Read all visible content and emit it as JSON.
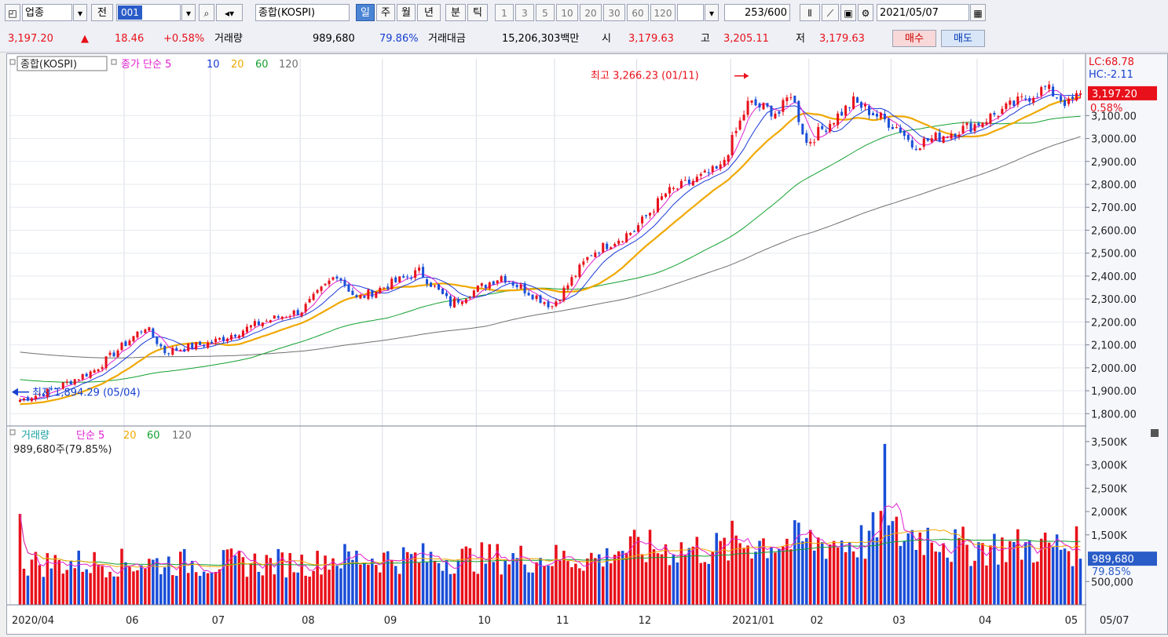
{
  "toolbar": {
    "market_type": "업종",
    "prev_label": "전",
    "code": "001",
    "index_name": "종합(KOSPI)",
    "periods": [
      "일",
      "주",
      "월",
      "년",
      "분",
      "틱"
    ],
    "active_period": "일",
    "intervals": [
      "1",
      "3",
      "5",
      "10",
      "20",
      "30",
      "60",
      "120"
    ],
    "count_value": "253",
    "count_total": "/600",
    "date": "2021/05/07"
  },
  "quote": {
    "price": "3,197.20",
    "change_arrow": "▲",
    "change": "18.46",
    "change_pct": "+0.58%",
    "volume_label": "거래량",
    "volume": "989,680",
    "volume_ratio": "79.86%",
    "amount_label": "거래대금",
    "amount": "15,206,303백만",
    "open_label": "시",
    "open": "3,179.63",
    "high_label": "고",
    "high": "3,205.11",
    "low_label": "저",
    "low": "3,179.63",
    "buy_label": "매수",
    "sell_label": "매도"
  },
  "colors": {
    "up": "#e8101a",
    "down": "#1a4ed8",
    "ma5": "#e020d0",
    "ma10": "#1a3ad8",
    "ma20": "#f0a800",
    "ma60": "#14a030",
    "ma120": "#707070"
  },
  "chart_data": {
    "type": "line",
    "price_legend": {
      "name": "종합(KOSPI)",
      "prefix": "종가 단순",
      "periods": [
        "5",
        "10",
        "20",
        "60",
        "120"
      ]
    },
    "volume_legend": {
      "name": "거래량",
      "prefix": "단순",
      "periods": [
        "5",
        "20",
        "60",
        "120"
      ],
      "current": "989,680주(79.85%)"
    },
    "x_ticks": [
      "2020/04",
      "06",
      "07",
      "08",
      "09",
      "10",
      "11",
      "12",
      "2021/01",
      "02",
      "03",
      "04",
      "05",
      "05/07"
    ],
    "price_axis": [
      "3,100.00",
      "3,000.00",
      "2,900.00",
      "2,800.00",
      "2,700.00",
      "2,600.00",
      "2,500.00",
      "2,400.00",
      "2,300.00",
      "2,200.00",
      "2,100.00",
      "2,000.00",
      "1,900.00",
      "1,800.00"
    ],
    "price_ylim": [
      1760,
      3320
    ],
    "volume_axis": [
      "3,500K",
      "3,000K",
      "2,500K",
      "2,000K",
      "1,500K",
      "500,000"
    ],
    "volume_ylim": [
      0,
      3700
    ],
    "lc": "LC:68.78",
    "hc": "HC:-2.11",
    "last_price_label": "3,197.20",
    "last_pct_label": "0.58%",
    "last_volume_label": "989,680",
    "last_volume_pct": "79.85%",
    "high_annotation": {
      "label": "최고 3,266.23 (01/11)",
      "value": 3266.23,
      "date": "2021/01/11"
    },
    "low_annotation": {
      "label": "최저 1,894.29 (05/04)",
      "value": 1894.29,
      "date": "2020/05/04"
    },
    "close_keypoints": [
      {
        "date": "2020/04/23",
        "close": 1860
      },
      {
        "date": "2020/05/04",
        "close": 1895
      },
      {
        "date": "2020/05/20",
        "close": 1990
      },
      {
        "date": "2020/06/08",
        "close": 2180
      },
      {
        "date": "2020/06/15",
        "close": 2070
      },
      {
        "date": "2020/07/01",
        "close": 2110
      },
      {
        "date": "2020/07/20",
        "close": 2200
      },
      {
        "date": "2020/08/03",
        "close": 2250
      },
      {
        "date": "2020/08/14",
        "close": 2410
      },
      {
        "date": "2020/08/21",
        "close": 2300
      },
      {
        "date": "2020/09/14",
        "close": 2420
      },
      {
        "date": "2020/09/24",
        "close": 2280
      },
      {
        "date": "2020/10/13",
        "close": 2400
      },
      {
        "date": "2020/10/30",
        "close": 2270
      },
      {
        "date": "2020/11/13",
        "close": 2500
      },
      {
        "date": "2020/11/30",
        "close": 2600
      },
      {
        "date": "2020/12/10",
        "close": 2760
      },
      {
        "date": "2020/12/30",
        "close": 2870
      },
      {
        "date": "2021/01/08",
        "close": 3150
      },
      {
        "date": "2021/01/11",
        "close": 3150
      },
      {
        "date": "2021/01/20",
        "close": 3110
      },
      {
        "date": "2021/01/25",
        "close": 3200
      },
      {
        "date": "2021/01/29",
        "close": 2980
      },
      {
        "date": "2021/02/16",
        "close": 3160
      },
      {
        "date": "2021/03/04",
        "close": 3040
      },
      {
        "date": "2021/03/09",
        "close": 2970
      },
      {
        "date": "2021/03/31",
        "close": 3060
      },
      {
        "date": "2021/04/26",
        "close": 3220
      },
      {
        "date": "2021/05/04",
        "close": 3150
      },
      {
        "date": "2021/05/07",
        "close": 3197.2
      }
    ]
  }
}
